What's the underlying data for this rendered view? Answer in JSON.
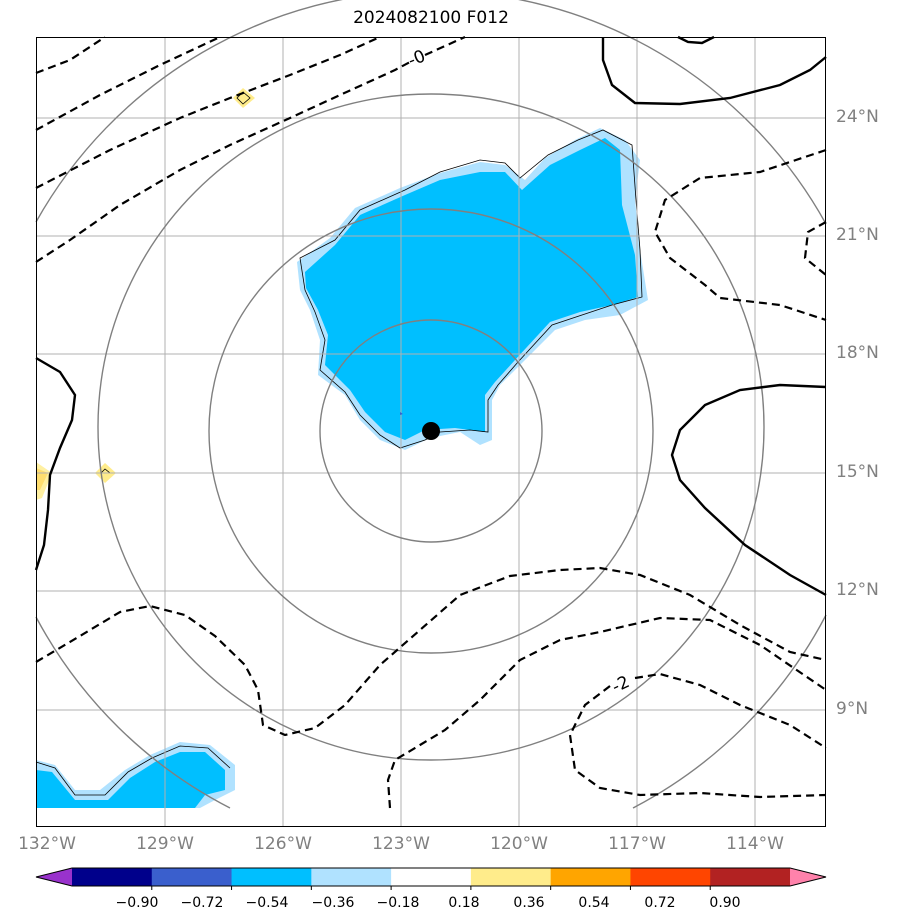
{
  "title": "2024082100 F012",
  "lat_labels": [
    "24°N",
    "21°N",
    "18°N",
    "15°N",
    "12°N",
    "9°N"
  ],
  "lon_labels": [
    "132°W",
    "129°W",
    "126°W",
    "123°W",
    "120°W",
    "117°W",
    "114°W"
  ],
  "contour_labels": [
    "-0",
    "-2"
  ],
  "colorbar": {
    "ticks": [
      "−0.90",
      "−0.72",
      "−0.54",
      "−0.36",
      "−0.18",
      "0.18",
      "0.36",
      "0.54",
      "0.72",
      "0.90"
    ],
    "colors": [
      "#9932cc",
      "#00008b",
      "#3a5fcd",
      "#00bfff",
      "#b0e2ff",
      "#ffffff",
      "#ffec8b",
      "#ffa500",
      "#ff4500",
      "#b22222",
      "#ff82ab"
    ]
  },
  "storm_center": {
    "lat": 16.0,
    "lon": "122.3°W"
  },
  "range_rings": 4
}
